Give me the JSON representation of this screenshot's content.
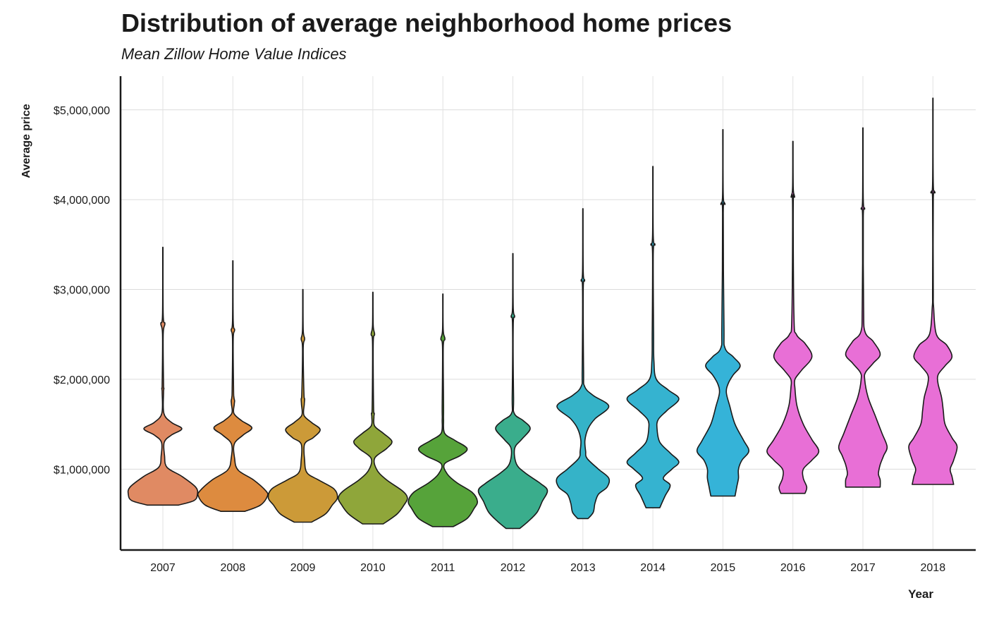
{
  "chart_data": {
    "type": "violin",
    "title": "Distribution of average neighborhood home prices",
    "subtitle": "Mean Zillow Home Value Indices",
    "xlabel": "Year",
    "ylabel": "Average price",
    "ylim": [
      0,
      5300000
    ],
    "y_ticks": [
      {
        "value": 1000000,
        "label": "$1,000,000"
      },
      {
        "value": 2000000,
        "label": "$2,000,000"
      },
      {
        "value": 3000000,
        "label": "$3,000,000"
      },
      {
        "value": 4000000,
        "label": "$4,000,000"
      },
      {
        "value": 5000000,
        "label": "$5,000,000"
      }
    ],
    "grid": true,
    "legend": "none",
    "categories": [
      "2007",
      "2008",
      "2009",
      "2010",
      "2011",
      "2012",
      "2013",
      "2014",
      "2015",
      "2016",
      "2017",
      "2018"
    ],
    "series": [
      {
        "year": "2007",
        "color": "#e08a63",
        "min": 600000,
        "max": 3470000,
        "profile": [
          [
            600000,
            0.45
          ],
          [
            650000,
            0.9
          ],
          [
            720000,
            1.0
          ],
          [
            800000,
            0.95
          ],
          [
            920000,
            0.55
          ],
          [
            1020000,
            0.12
          ],
          [
            1150000,
            0.05
          ],
          [
            1300000,
            0.04
          ],
          [
            1380000,
            0.25
          ],
          [
            1450000,
            0.55
          ],
          [
            1520000,
            0.25
          ],
          [
            1620000,
            0.03
          ],
          [
            1850000,
            0.02
          ],
          [
            1900000,
            0.03
          ],
          [
            1950000,
            0.02
          ],
          [
            2500000,
            0.01
          ],
          [
            2620000,
            0.06
          ],
          [
            2720000,
            0.01
          ],
          [
            3470000,
            0.005
          ]
        ]
      },
      {
        "year": "2008",
        "color": "#dd8b3f",
        "min": 530000,
        "max": 3320000,
        "profile": [
          [
            530000,
            0.35
          ],
          [
            600000,
            0.8
          ],
          [
            700000,
            1.0
          ],
          [
            760000,
            0.95
          ],
          [
            880000,
            0.6
          ],
          [
            990000,
            0.15
          ],
          [
            1120000,
            0.05
          ],
          [
            1280000,
            0.04
          ],
          [
            1380000,
            0.3
          ],
          [
            1460000,
            0.55
          ],
          [
            1540000,
            0.25
          ],
          [
            1620000,
            0.03
          ],
          [
            1720000,
            0.04
          ],
          [
            1760000,
            0.05
          ],
          [
            1800000,
            0.03
          ],
          [
            1900000,
            0.02
          ],
          [
            2450000,
            0.01
          ],
          [
            2550000,
            0.05
          ],
          [
            2650000,
            0.01
          ],
          [
            3320000,
            0.005
          ]
        ]
      },
      {
        "year": "2009",
        "color": "#cc9a38",
        "min": 410000,
        "max": 3000000,
        "profile": [
          [
            410000,
            0.25
          ],
          [
            500000,
            0.65
          ],
          [
            600000,
            0.85
          ],
          [
            680000,
            1.0
          ],
          [
            780000,
            0.9
          ],
          [
            880000,
            0.45
          ],
          [
            960000,
            0.12
          ],
          [
            1100000,
            0.05
          ],
          [
            1280000,
            0.05
          ],
          [
            1350000,
            0.3
          ],
          [
            1440000,
            0.5
          ],
          [
            1520000,
            0.25
          ],
          [
            1600000,
            0.03
          ],
          [
            1720000,
            0.04
          ],
          [
            1780000,
            0.05
          ],
          [
            1850000,
            0.03
          ],
          [
            2350000,
            0.01
          ],
          [
            2450000,
            0.05
          ],
          [
            2550000,
            0.01
          ],
          [
            3000000,
            0.005
          ]
        ]
      },
      {
        "year": "2010",
        "color": "#8fa63a",
        "min": 390000,
        "max": 2970000,
        "profile": [
          [
            390000,
            0.3
          ],
          [
            500000,
            0.7
          ],
          [
            600000,
            0.9
          ],
          [
            680000,
            1.0
          ],
          [
            760000,
            0.85
          ],
          [
            880000,
            0.4
          ],
          [
            990000,
            0.12
          ],
          [
            1120000,
            0.05
          ],
          [
            1230000,
            0.4
          ],
          [
            1310000,
            0.55
          ],
          [
            1400000,
            0.3
          ],
          [
            1480000,
            0.05
          ],
          [
            1580000,
            0.03
          ],
          [
            1620000,
            0.04
          ],
          [
            1700000,
            0.02
          ],
          [
            2400000,
            0.01
          ],
          [
            2500000,
            0.05
          ],
          [
            2600000,
            0.01
          ],
          [
            2970000,
            0.005
          ]
        ]
      },
      {
        "year": "2011",
        "color": "#56a33a",
        "min": 360000,
        "max": 2950000,
        "profile": [
          [
            360000,
            0.3
          ],
          [
            450000,
            0.7
          ],
          [
            560000,
            0.9
          ],
          [
            640000,
            1.0
          ],
          [
            740000,
            0.85
          ],
          [
            850000,
            0.4
          ],
          [
            950000,
            0.12
          ],
          [
            1060000,
            0.05
          ],
          [
            1150000,
            0.5
          ],
          [
            1230000,
            0.7
          ],
          [
            1320000,
            0.35
          ],
          [
            1400000,
            0.05
          ],
          [
            1550000,
            0.02
          ],
          [
            1700000,
            0.02
          ],
          [
            2350000,
            0.01
          ],
          [
            2450000,
            0.06
          ],
          [
            2550000,
            0.01
          ],
          [
            2950000,
            0.005
          ]
        ]
      },
      {
        "year": "2012",
        "color": "#3aad8c",
        "min": 340000,
        "max": 3400000,
        "profile": [
          [
            340000,
            0.2
          ],
          [
            420000,
            0.45
          ],
          [
            520000,
            0.7
          ],
          [
            640000,
            0.85
          ],
          [
            760000,
            1.0
          ],
          [
            840000,
            0.8
          ],
          [
            960000,
            0.35
          ],
          [
            1060000,
            0.1
          ],
          [
            1230000,
            0.05
          ],
          [
            1330000,
            0.25
          ],
          [
            1450000,
            0.5
          ],
          [
            1540000,
            0.3
          ],
          [
            1620000,
            0.04
          ],
          [
            1800000,
            0.02
          ],
          [
            2600000,
            0.01
          ],
          [
            2700000,
            0.05
          ],
          [
            2800000,
            0.01
          ],
          [
            3400000,
            0.005
          ]
        ]
      },
      {
        "year": "2013",
        "color": "#35b3c8",
        "min": 450000,
        "max": 3900000,
        "profile": [
          [
            450000,
            0.15
          ],
          [
            520000,
            0.3
          ],
          [
            620000,
            0.35
          ],
          [
            720000,
            0.45
          ],
          [
            800000,
            0.7
          ],
          [
            900000,
            0.75
          ],
          [
            1000000,
            0.45
          ],
          [
            1120000,
            0.12
          ],
          [
            1200000,
            0.08
          ],
          [
            1320000,
            0.06
          ],
          [
            1450000,
            0.15
          ],
          [
            1560000,
            0.35
          ],
          [
            1700000,
            0.75
          ],
          [
            1820000,
            0.3
          ],
          [
            1920000,
            0.05
          ],
          [
            2100000,
            0.02
          ],
          [
            3000000,
            0.01
          ],
          [
            3100000,
            0.05
          ],
          [
            3200000,
            0.01
          ],
          [
            3900000,
            0.005
          ]
        ]
      },
      {
        "year": "2014",
        "color": "#35b3d0",
        "min": 570000,
        "max": 4370000,
        "profile": [
          [
            570000,
            0.2
          ],
          [
            700000,
            0.35
          ],
          [
            820000,
            0.5
          ],
          [
            900000,
            0.3
          ],
          [
            1000000,
            0.55
          ],
          [
            1080000,
            0.75
          ],
          [
            1180000,
            0.5
          ],
          [
            1300000,
            0.2
          ],
          [
            1450000,
            0.12
          ],
          [
            1550000,
            0.15
          ],
          [
            1650000,
            0.4
          ],
          [
            1780000,
            0.75
          ],
          [
            1880000,
            0.45
          ],
          [
            2000000,
            0.1
          ],
          [
            2200000,
            0.03
          ],
          [
            2500000,
            0.02
          ],
          [
            3400000,
            0.01
          ],
          [
            3500000,
            0.06
          ],
          [
            3600000,
            0.01
          ],
          [
            4370000,
            0.005
          ]
        ]
      },
      {
        "year": "2015",
        "color": "#35b3d8",
        "min": 700000,
        "max": 4780000,
        "profile": [
          [
            700000,
            0.35
          ],
          [
            800000,
            0.4
          ],
          [
            900000,
            0.45
          ],
          [
            1000000,
            0.45
          ],
          [
            1100000,
            0.55
          ],
          [
            1200000,
            0.75
          ],
          [
            1320000,
            0.6
          ],
          [
            1500000,
            0.35
          ],
          [
            1700000,
            0.2
          ],
          [
            1850000,
            0.1
          ],
          [
            1950000,
            0.15
          ],
          [
            2050000,
            0.3
          ],
          [
            2150000,
            0.5
          ],
          [
            2250000,
            0.3
          ],
          [
            2350000,
            0.06
          ],
          [
            2600000,
            0.03
          ],
          [
            3850000,
            0.01
          ],
          [
            3950000,
            0.06
          ],
          [
            4050000,
            0.01
          ],
          [
            4780000,
            0.005
          ]
        ]
      },
      {
        "year": "2016",
        "color": "#e86fd6",
        "min": 730000,
        "max": 4650000,
        "profile": [
          [
            730000,
            0.35
          ],
          [
            800000,
            0.4
          ],
          [
            900000,
            0.3
          ],
          [
            1000000,
            0.3
          ],
          [
            1100000,
            0.55
          ],
          [
            1200000,
            0.75
          ],
          [
            1330000,
            0.55
          ],
          [
            1500000,
            0.3
          ],
          [
            1700000,
            0.12
          ],
          [
            1900000,
            0.06
          ],
          [
            2000000,
            0.06
          ],
          [
            2100000,
            0.25
          ],
          [
            2250000,
            0.55
          ],
          [
            2400000,
            0.35
          ],
          [
            2500000,
            0.1
          ],
          [
            2700000,
            0.03
          ],
          [
            3950000,
            0.01
          ],
          [
            4030000,
            0.05
          ],
          [
            4130000,
            0.01
          ],
          [
            4650000,
            0.005
          ]
        ]
      },
      {
        "year": "2017",
        "color": "#e86fd6",
        "min": 800000,
        "max": 4800000,
        "profile": [
          [
            800000,
            0.5
          ],
          [
            880000,
            0.5
          ],
          [
            950000,
            0.45
          ],
          [
            1050000,
            0.5
          ],
          [
            1150000,
            0.6
          ],
          [
            1250000,
            0.7
          ],
          [
            1400000,
            0.55
          ],
          [
            1600000,
            0.35
          ],
          [
            1800000,
            0.15
          ],
          [
            2000000,
            0.05
          ],
          [
            2080000,
            0.08
          ],
          [
            2180000,
            0.3
          ],
          [
            2280000,
            0.5
          ],
          [
            2420000,
            0.3
          ],
          [
            2530000,
            0.06
          ],
          [
            2800000,
            0.02
          ],
          [
            3800000,
            0.01
          ],
          [
            3900000,
            0.05
          ],
          [
            4000000,
            0.01
          ],
          [
            4800000,
            0.005
          ]
        ]
      },
      {
        "year": "2018",
        "color": "#e86fd6",
        "min": 830000,
        "max": 5130000,
        "profile": [
          [
            830000,
            0.6
          ],
          [
            920000,
            0.55
          ],
          [
            1000000,
            0.5
          ],
          [
            1100000,
            0.6
          ],
          [
            1250000,
            0.7
          ],
          [
            1350000,
            0.55
          ],
          [
            1500000,
            0.35
          ],
          [
            1650000,
            0.3
          ],
          [
            1800000,
            0.25
          ],
          [
            1950000,
            0.15
          ],
          [
            2050000,
            0.15
          ],
          [
            2150000,
            0.35
          ],
          [
            2250000,
            0.55
          ],
          [
            2380000,
            0.4
          ],
          [
            2500000,
            0.1
          ],
          [
            2800000,
            0.02
          ],
          [
            3000000,
            0.01
          ],
          [
            4000000,
            0.01
          ],
          [
            4080000,
            0.06
          ],
          [
            4180000,
            0.01
          ],
          [
            5130000,
            0.005
          ]
        ]
      }
    ]
  }
}
